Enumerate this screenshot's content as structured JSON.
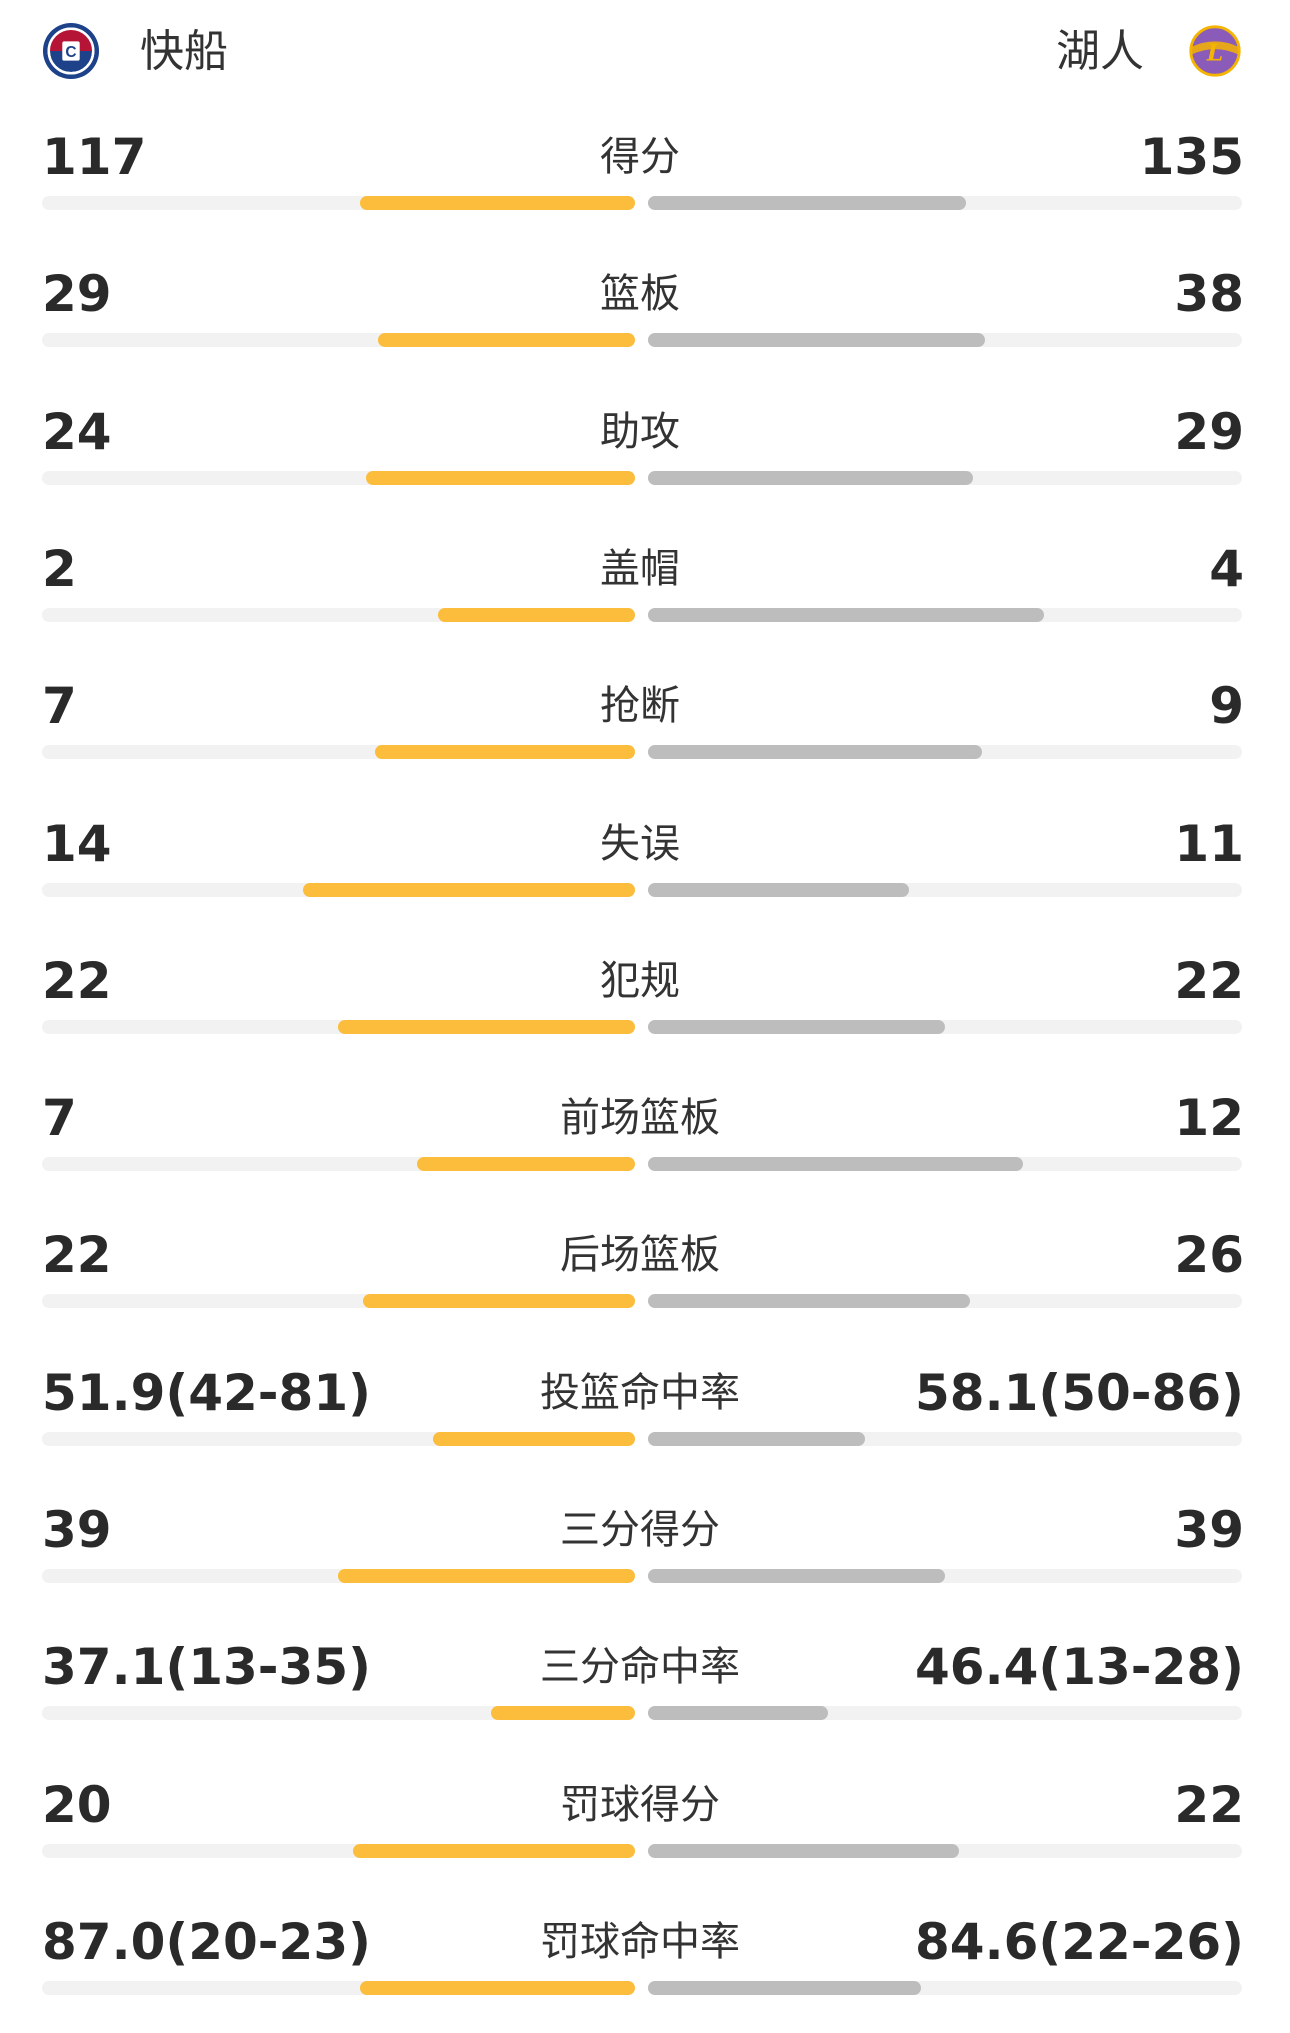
{
  "header": {
    "home_team": "快船",
    "away_team": "湖人",
    "home_logo": "clippers-logo",
    "away_logo": "lakers-logo"
  },
  "colors": {
    "home_bar": "#fbbd3b",
    "away_bar": "#bdbdbd",
    "track": "#f2f2f2"
  },
  "stats": [
    {
      "label": "得分",
      "home": "117",
      "away": "135",
      "home_share": 0.464,
      "away_share": 0.536
    },
    {
      "label": "篮板",
      "home": "29",
      "away": "38",
      "home_share": 0.433,
      "away_share": 0.567
    },
    {
      "label": "助攻",
      "home": "24",
      "away": "29",
      "home_share": 0.453,
      "away_share": 0.547
    },
    {
      "label": "盖帽",
      "home": "2",
      "away": "4",
      "home_share": 0.333,
      "away_share": 0.667
    },
    {
      "label": "抢断",
      "home": "7",
      "away": "9",
      "home_share": 0.438,
      "away_share": 0.562
    },
    {
      "label": "失误",
      "home": "14",
      "away": "11",
      "home_share": 0.56,
      "away_share": 0.44
    },
    {
      "label": "犯规",
      "home": "22",
      "away": "22",
      "home_share": 0.5,
      "away_share": 0.5
    },
    {
      "label": "前场篮板",
      "home": "7",
      "away": "12",
      "home_share": 0.368,
      "away_share": 0.632
    },
    {
      "label": "后场篮板",
      "home": "22",
      "away": "26",
      "home_share": 0.458,
      "away_share": 0.542
    },
    {
      "label": "投篮命中率",
      "home": "51.9(42-81)",
      "away": "58.1(50-86)",
      "home_share": 0.34,
      "away_share": 0.366
    },
    {
      "label": "三分得分",
      "home": "39",
      "away": "39",
      "home_share": 0.5,
      "away_share": 0.5
    },
    {
      "label": "三分命中率",
      "home": "37.1(13-35)",
      "away": "46.4(13-28)",
      "home_share": 0.243,
      "away_share": 0.303
    },
    {
      "label": "罚球得分",
      "home": "20",
      "away": "22",
      "home_share": 0.476,
      "away_share": 0.524
    },
    {
      "label": "罚球命中率",
      "home": "87.0(20-23)",
      "away": "84.6(22-26)",
      "home_share": 0.464,
      "away_share": 0.46
    }
  ]
}
